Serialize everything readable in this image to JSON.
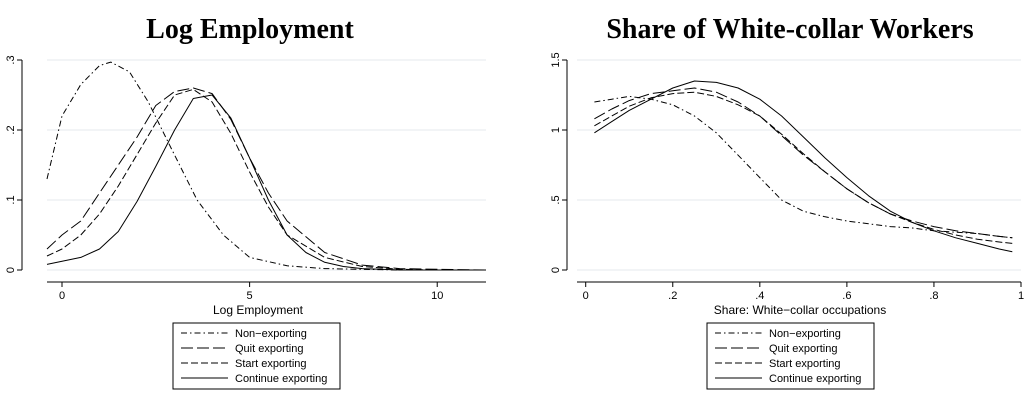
{
  "chart_data": [
    {
      "type": "line",
      "title": "Log Employment",
      "xlabel": "Log Employment",
      "ylabel": "",
      "xlim": [
        -0.4,
        11.3
      ],
      "ylim": [
        0,
        0.3
      ],
      "xticks": [
        0,
        5,
        10
      ],
      "xtick_labels": [
        "0",
        "5",
        "10"
      ],
      "yticks": [
        0,
        0.1,
        0.2,
        0.3
      ],
      "ytick_labels": [
        "0",
        ".1",
        ".2",
        ".3"
      ],
      "grid": true,
      "legend_position": "bottom",
      "series": [
        {
          "name": "Non−exporting",
          "dash": "dashdot",
          "x": [
            -0.4,
            0,
            0.5,
            1,
            1.3,
            1.8,
            2.3,
            2.9,
            3.6,
            4.3,
            5,
            6,
            7,
            8,
            9,
            10,
            11.3
          ],
          "y": [
            0.13,
            0.22,
            0.265,
            0.292,
            0.297,
            0.283,
            0.24,
            0.175,
            0.1,
            0.05,
            0.018,
            0.006,
            0.002,
            0.001,
            0,
            0,
            0
          ]
        },
        {
          "name": "Quit exporting",
          "dash": "longdash",
          "x": [
            -0.4,
            0,
            0.5,
            1,
            1.5,
            2,
            2.5,
            3,
            3.5,
            4,
            4.5,
            5,
            5.5,
            6,
            7,
            8,
            9,
            10,
            11.3
          ],
          "y": [
            0.03,
            0.05,
            0.07,
            0.11,
            0.15,
            0.19,
            0.235,
            0.255,
            0.26,
            0.252,
            0.215,
            0.16,
            0.11,
            0.07,
            0.025,
            0.007,
            0.002,
            0.001,
            0
          ]
        },
        {
          "name": "Start exporting",
          "dash": "dash",
          "x": [
            -0.4,
            0,
            0.5,
            1,
            1.5,
            2,
            2.5,
            3,
            3.5,
            4,
            4.5,
            5,
            5.5,
            6,
            7,
            8,
            9,
            10,
            11.3
          ],
          "y": [
            0.02,
            0.03,
            0.05,
            0.08,
            0.12,
            0.165,
            0.21,
            0.25,
            0.258,
            0.24,
            0.195,
            0.14,
            0.09,
            0.05,
            0.018,
            0.005,
            0.001,
            0,
            0
          ]
        },
        {
          "name": "Continue exporting",
          "dash": "solid",
          "x": [
            -0.4,
            0.5,
            1,
            1.5,
            2,
            2.5,
            3,
            3.5,
            4,
            4.5,
            5,
            5.5,
            6,
            6.5,
            7,
            7.5,
            8,
            8.5,
            9,
            10,
            11.3
          ],
          "y": [
            0.008,
            0.018,
            0.03,
            0.055,
            0.098,
            0.148,
            0.2,
            0.245,
            0.25,
            0.217,
            0.16,
            0.1,
            0.05,
            0.025,
            0.011,
            0.005,
            0.002,
            0.001,
            0,
            0,
            0
          ]
        }
      ]
    },
    {
      "type": "line",
      "title": "Share of White-collar Workers",
      "xlabel": "Share: White−collar occupations",
      "ylabel": "",
      "xlim": [
        -0.02,
        1.0
      ],
      "ylim": [
        0,
        1.5
      ],
      "xticks": [
        0,
        0.2,
        0.4,
        0.6,
        0.8,
        1
      ],
      "xtick_labels": [
        "0",
        ".2",
        ".4",
        ".6",
        ".8",
        "1"
      ],
      "yticks": [
        0,
        0.5,
        1,
        1.5
      ],
      "ytick_labels": [
        "0",
        ".5",
        "1",
        "1.5"
      ],
      "grid": true,
      "legend_position": "bottom",
      "series": [
        {
          "name": "Non−exporting",
          "dash": "dashdot",
          "x": [
            0.02,
            0.06,
            0.1,
            0.15,
            0.2,
            0.25,
            0.3,
            0.35,
            0.4,
            0.45,
            0.5,
            0.55,
            0.6,
            0.65,
            0.7,
            0.75,
            0.8,
            0.85,
            0.9,
            0.95,
            0.98
          ],
          "y": [
            1.2,
            1.22,
            1.24,
            1.22,
            1.18,
            1.1,
            0.98,
            0.82,
            0.66,
            0.5,
            0.42,
            0.38,
            0.35,
            0.33,
            0.31,
            0.3,
            0.28,
            0.27,
            0.26,
            0.24,
            0.23
          ]
        },
        {
          "name": "Quit exporting",
          "dash": "longdash",
          "x": [
            0.02,
            0.06,
            0.1,
            0.15,
            0.2,
            0.25,
            0.3,
            0.35,
            0.4,
            0.45,
            0.5,
            0.55,
            0.6,
            0.65,
            0.7,
            0.75,
            0.8,
            0.85,
            0.9,
            0.95,
            0.98
          ],
          "y": [
            1.08,
            1.15,
            1.21,
            1.26,
            1.28,
            1.3,
            1.27,
            1.2,
            1.1,
            0.96,
            0.82,
            0.7,
            0.58,
            0.48,
            0.4,
            0.35,
            0.31,
            0.28,
            0.26,
            0.24,
            0.23
          ]
        },
        {
          "name": "Start exporting",
          "dash": "dash",
          "x": [
            0.02,
            0.06,
            0.1,
            0.15,
            0.2,
            0.25,
            0.3,
            0.35,
            0.4,
            0.45,
            0.5,
            0.55,
            0.6,
            0.65,
            0.7,
            0.75,
            0.8,
            0.85,
            0.9,
            0.95,
            0.98
          ],
          "y": [
            1.03,
            1.1,
            1.17,
            1.23,
            1.26,
            1.27,
            1.24,
            1.18,
            1.1,
            0.97,
            0.83,
            0.7,
            0.58,
            0.48,
            0.4,
            0.34,
            0.29,
            0.25,
            0.22,
            0.2,
            0.19
          ]
        },
        {
          "name": "Continue exporting",
          "dash": "solid",
          "x": [
            0.02,
            0.06,
            0.1,
            0.15,
            0.2,
            0.25,
            0.3,
            0.35,
            0.4,
            0.45,
            0.5,
            0.55,
            0.6,
            0.65,
            0.7,
            0.75,
            0.8,
            0.85,
            0.9,
            0.95,
            0.98
          ],
          "y": [
            0.98,
            1.06,
            1.14,
            1.22,
            1.3,
            1.35,
            1.34,
            1.3,
            1.22,
            1.1,
            0.95,
            0.8,
            0.66,
            0.53,
            0.42,
            0.34,
            0.28,
            0.23,
            0.19,
            0.15,
            0.13
          ]
        }
      ]
    }
  ]
}
